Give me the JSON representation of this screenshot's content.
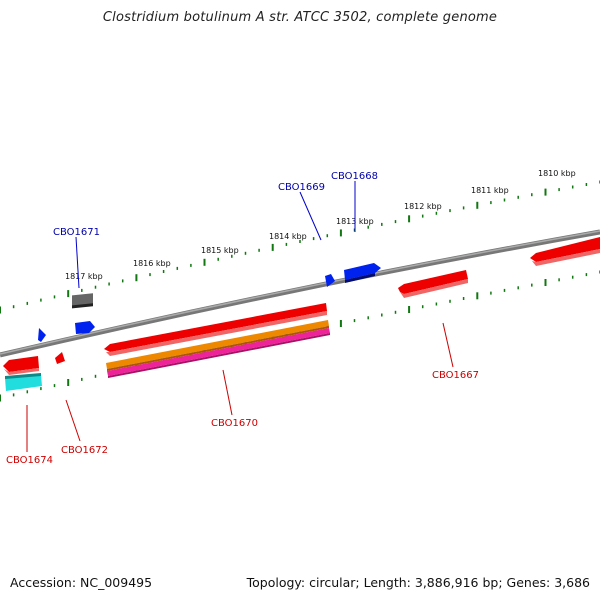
{
  "title": "Clostridium botulinum A str. ATCC 3502, complete genome",
  "footer": {
    "accession": "Accession: NC_009495",
    "summary": "Topology: circular; Length: 3,886,916 bp; Genes: 3,686"
  },
  "scale_ticks": [
    "1810 kbp",
    "1811 kbp",
    "1812 kbp",
    "1813 kbp",
    "1814 kbp",
    "1815 kbp",
    "1816 kbp",
    "1817 kbp"
  ],
  "genes_top": [
    "CBO1668",
    "CBO1669",
    "CBO1671"
  ],
  "genes_bottom": [
    "CBO1667",
    "CBO1670",
    "CBO1672",
    "CBO1674"
  ],
  "colors": {
    "forward_label": "#0000aa",
    "reverse_label": "#cc0000",
    "gene_red": "#ee0000",
    "gene_blue": "#0022ee",
    "gene_orange": "#ee8800",
    "gene_magenta": "#ee2299",
    "gene_cyan": "#22dddd",
    "gene_gray": "#666666",
    "tick": "#117711",
    "backbone": "#808080"
  }
}
